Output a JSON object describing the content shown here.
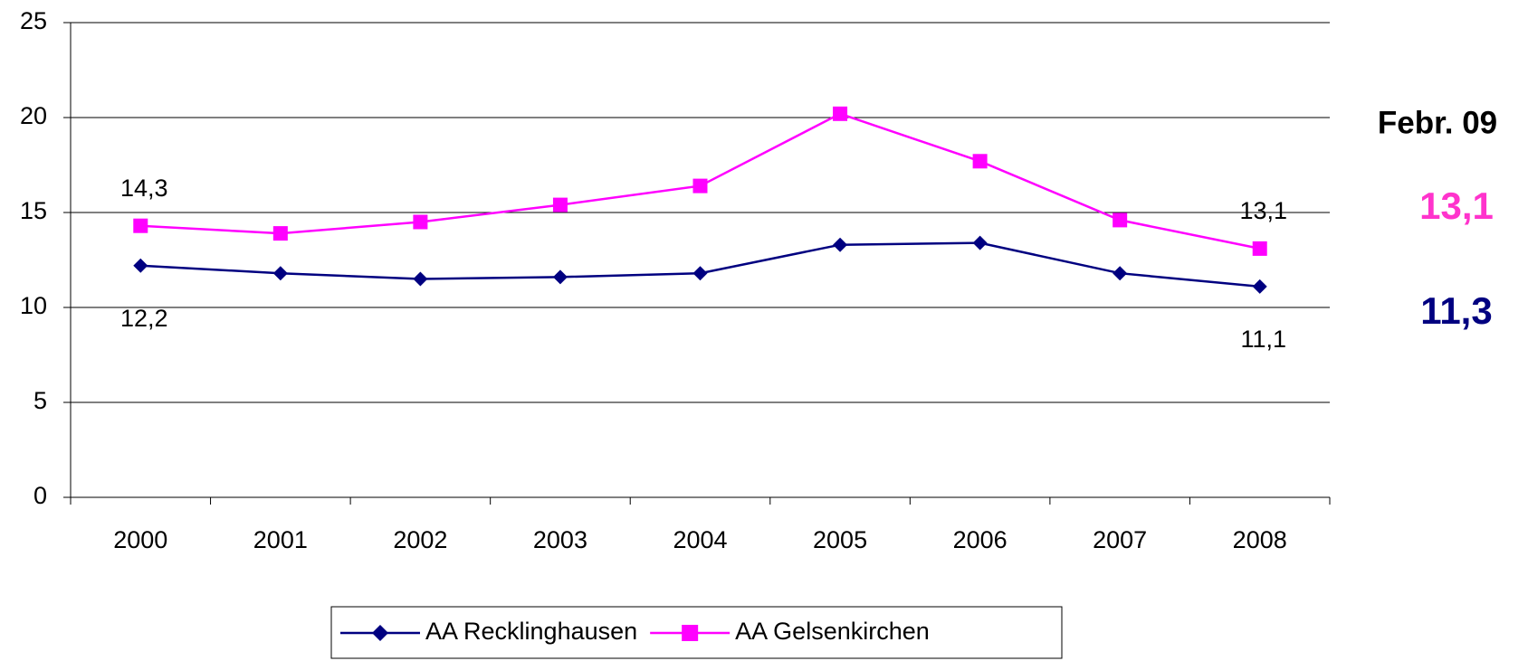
{
  "chart_data": {
    "type": "line",
    "categories": [
      "2000",
      "2001",
      "2002",
      "2003",
      "2004",
      "2005",
      "2006",
      "2007",
      "2008"
    ],
    "series": [
      {
        "name": "AA Recklinghausen",
        "color": "#000080",
        "marker": "diamond",
        "values": [
          12.2,
          11.8,
          11.5,
          11.6,
          11.8,
          13.3,
          13.4,
          11.8,
          11.1
        ],
        "value_labels": [
          "12,2",
          null,
          null,
          null,
          null,
          null,
          null,
          null,
          "11,1"
        ]
      },
      {
        "name": "AA Gelsenkirchen",
        "color": "#ff00ff",
        "marker": "square",
        "values": [
          14.3,
          13.9,
          14.5,
          15.4,
          16.4,
          20.2,
          17.7,
          14.6,
          13.1
        ],
        "value_labels": [
          "14,3",
          null,
          null,
          null,
          null,
          null,
          null,
          null,
          "13,1"
        ]
      }
    ],
    "ylim": [
      0,
      25
    ],
    "yticks": [
      0,
      5,
      10,
      15,
      20,
      25
    ],
    "grid": true,
    "legend": "bottom",
    "annotations": [
      {
        "text": "Febr. 09",
        "color": "#000000"
      },
      {
        "text": "13,1",
        "color": "#ff33cc"
      },
      {
        "text": "11,3",
        "color": "#000080"
      }
    ]
  }
}
